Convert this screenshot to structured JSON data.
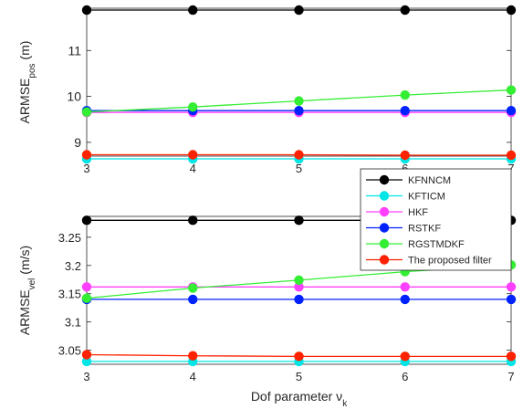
{
  "chart_data": [
    {
      "type": "line",
      "title": "",
      "xlabel": "",
      "ylabel": "ARMSE",
      "ylabel_sub": "pos",
      "ylabel_unit": "(m)",
      "xlim": [
        3,
        7
      ],
      "ylim": [
        8.7,
        11.92
      ],
      "xticks": [
        "3",
        "4",
        "5",
        "6",
        "7"
      ],
      "yticks": [
        "9",
        "10",
        "11"
      ],
      "grid": false,
      "x": [
        3,
        4,
        5,
        6,
        7
      ],
      "series": [
        {
          "name": "KFNNCM",
          "color": "#000000",
          "values": [
            11.88,
            11.88,
            11.88,
            11.88,
            11.88
          ]
        },
        {
          "name": "KFTICM",
          "color": "#00e5e5",
          "values": [
            8.64,
            8.64,
            8.64,
            8.64,
            8.64
          ]
        },
        {
          "name": "HKF",
          "color": "#ff40ff",
          "values": [
            9.65,
            9.65,
            9.65,
            9.65,
            9.65
          ]
        },
        {
          "name": "RSTKF",
          "color": "#0022ff",
          "values": [
            9.69,
            9.69,
            9.69,
            9.69,
            9.69
          ]
        },
        {
          "name": "RGSTMDKF",
          "color": "#33ee33",
          "values": [
            9.66,
            9.77,
            9.9,
            10.03,
            10.14
          ]
        },
        {
          "name": "The proposed filter",
          "color": "#ff2200",
          "values": [
            8.73,
            8.73,
            8.73,
            8.72,
            8.72
          ]
        }
      ]
    },
    {
      "type": "line",
      "title": "",
      "xlabel": "Dof parameter ν",
      "xlabel_sub": "k",
      "ylabel": "ARMSE",
      "ylabel_sub": "vel",
      "ylabel_unit": "(m/s)",
      "xlim": [
        3,
        7
      ],
      "ylim": [
        3.025,
        3.287
      ],
      "xticks": [
        "3",
        "4",
        "5",
        "6",
        "7"
      ],
      "yticks": [
        "3.05",
        "3.1",
        "3.15",
        "3.2",
        "3.25"
      ],
      "grid": false,
      "x": [
        3,
        4,
        5,
        6,
        7
      ],
      "series": [
        {
          "name": "KFNNCM",
          "color": "#000000",
          "values": [
            3.28,
            3.28,
            3.28,
            3.28,
            3.28
          ]
        },
        {
          "name": "KFTICM",
          "color": "#00e5e5",
          "values": [
            3.03,
            3.03,
            3.03,
            3.03,
            3.03
          ]
        },
        {
          "name": "HKF",
          "color": "#ff40ff",
          "values": [
            3.162,
            3.162,
            3.162,
            3.162,
            3.162
          ]
        },
        {
          "name": "RSTKF",
          "color": "#0022ff",
          "values": [
            3.14,
            3.14,
            3.14,
            3.14,
            3.14
          ]
        },
        {
          "name": "RGSTMDKF",
          "color": "#33ee33",
          "values": [
            3.142,
            3.16,
            3.174,
            3.189,
            3.201
          ]
        },
        {
          "name": "The proposed filter",
          "color": "#ff2200",
          "values": [
            3.042,
            3.04,
            3.039,
            3.039,
            3.039
          ]
        }
      ]
    }
  ],
  "legend": {
    "placement": "right",
    "entries": [
      "KFNNCM",
      "KFTICM",
      "HKF",
      "RSTKF",
      "RGSTMDKF",
      "The proposed filter"
    ]
  }
}
